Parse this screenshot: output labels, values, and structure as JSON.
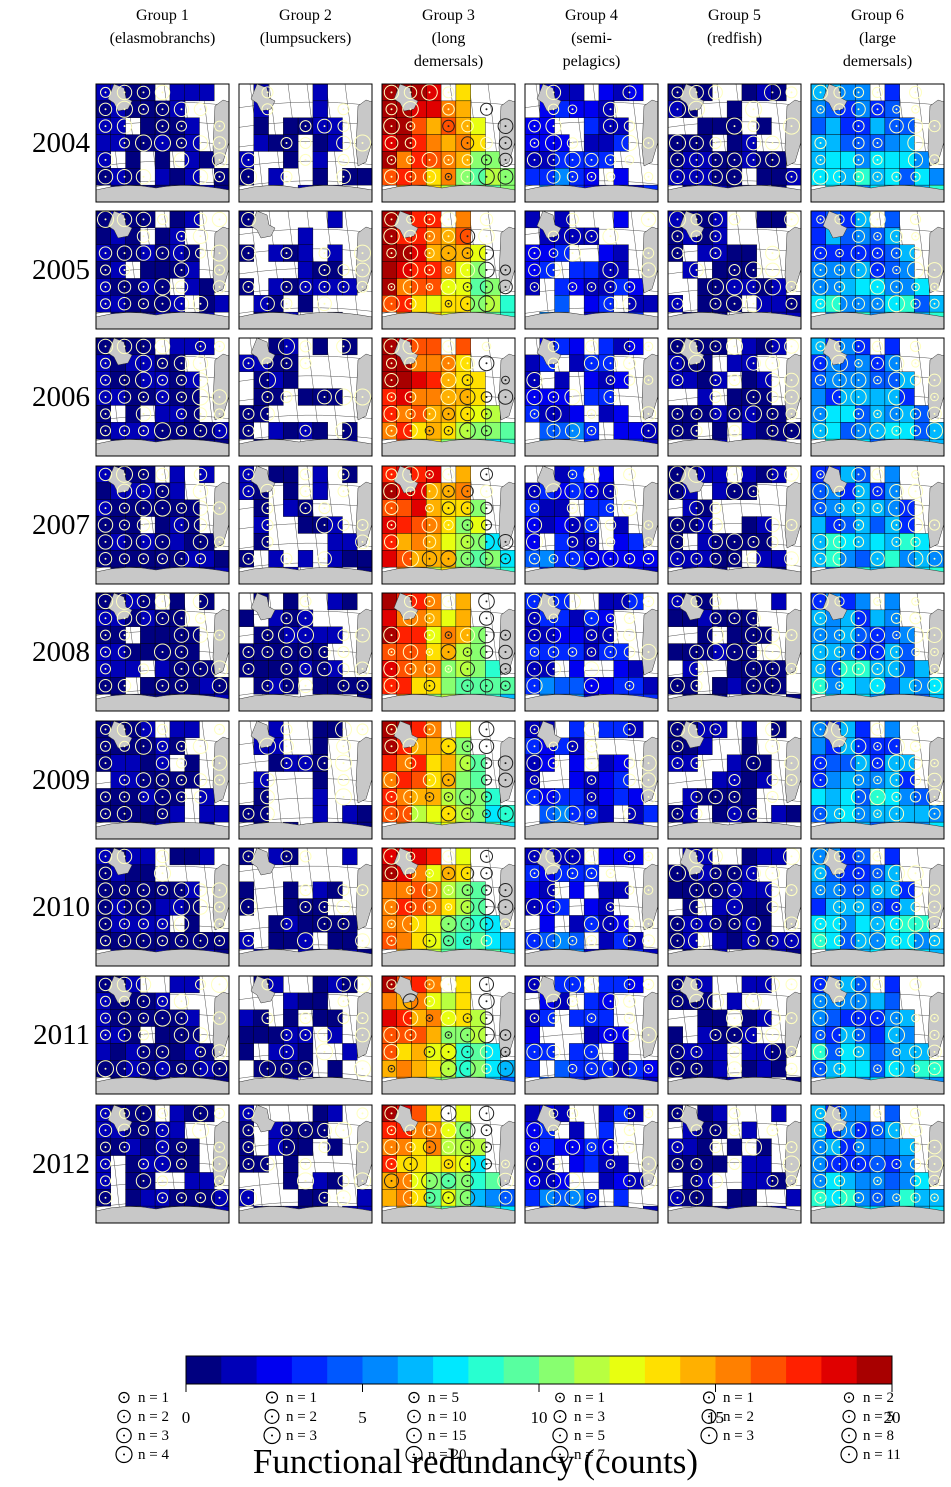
{
  "chart_data": {
    "type": "heatmap",
    "title": "",
    "colorbar": {
      "label": "Functional redundancy (counts)",
      "range": [
        0,
        20
      ],
      "ticks": [
        0,
        5,
        10,
        15,
        20
      ],
      "bins": 20,
      "colors": [
        "#000080",
        "#0000b8",
        "#0000f0",
        "#0028ff",
        "#0058ff",
        "#0088ff",
        "#00b8ff",
        "#00e8ff",
        "#28ffd0",
        "#58ffa0",
        "#88ff70",
        "#b8ff40",
        "#e8ff10",
        "#ffe000",
        "#ffb000",
        "#ff8000",
        "#ff5000",
        "#ff2000",
        "#e00000",
        "#a80000"
      ]
    },
    "years": [
      "2004",
      "2005",
      "2006",
      "2007",
      "2008",
      "2009",
      "2010",
      "2011",
      "2012"
    ],
    "groups": [
      {
        "title": [
          "Group 1",
          "(elasmobranchs)"
        ],
        "legend": [
          {
            "label": "n = 1",
            "n": 1
          },
          {
            "label": "n = 2",
            "n": 2
          },
          {
            "label": "n = 3",
            "n": 3
          },
          {
            "label": "n = 4",
            "n": 4
          }
        ],
        "nmax": 4
      },
      {
        "title": [
          "Group 2",
          "(lumpsuckers)"
        ],
        "legend": [
          {
            "label": "n = 1",
            "n": 1
          },
          {
            "label": "n = 2",
            "n": 2
          },
          {
            "label": "n = 3",
            "n": 3
          }
        ],
        "nmax": 3
      },
      {
        "title": [
          "Group 3",
          "(long",
          "demersals)"
        ],
        "legend": [
          {
            "label": "n = 5",
            "n": 5
          },
          {
            "label": "n = 10",
            "n": 10
          },
          {
            "label": "n = 15",
            "n": 15
          },
          {
            "label": "n = 20",
            "n": 20
          }
        ],
        "nmax": 20
      },
      {
        "title": [
          "Group 4",
          "(semi-",
          "pelagics)"
        ],
        "legend": [
          {
            "label": "n = 1",
            "n": 1
          },
          {
            "label": "n = 3",
            "n": 3
          },
          {
            "label": "n = 5",
            "n": 5
          },
          {
            "label": "n = 7",
            "n": 7
          }
        ],
        "nmax": 7
      },
      {
        "title": [
          "Group 5",
          "(redfish)"
        ],
        "legend": [
          {
            "label": "n = 1",
            "n": 1
          },
          {
            "label": "n = 2",
            "n": 2
          },
          {
            "label": "n = 3",
            "n": 3
          }
        ],
        "nmax": 3
      },
      {
        "title": [
          "Group 6",
          "(large",
          "demersals)"
        ],
        "legend": [
          {
            "label": "n = 2",
            "n": 2
          },
          {
            "label": "n = 5",
            "n": 5
          },
          {
            "label": "n = 8",
            "n": 8
          },
          {
            "label": "n = 11",
            "n": 11
          }
        ],
        "nmax": 11
      }
    ],
    "grid": {
      "rows": 7,
      "cols": 9
    },
    "colors": {
      "land": "#c8c8c8",
      "circle_on_dark": "#ffffc0",
      "circle_on_light": "#202020",
      "border": "#000000"
    }
  }
}
